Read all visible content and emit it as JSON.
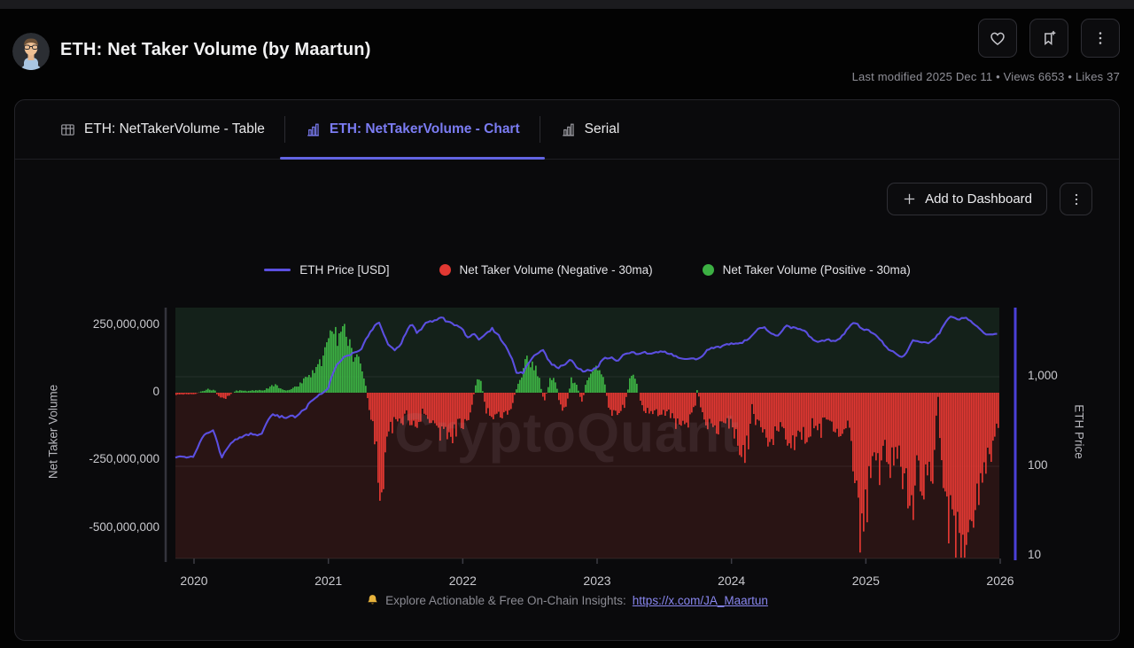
{
  "header": {
    "title": "ETH: Net Taker Volume (by Maartun)",
    "meta": "Last modified 2025 Dec 11  •  Views 6653  •  Likes 37"
  },
  "tabs": [
    {
      "label": "ETH: NetTakerVolume - Table",
      "active": false
    },
    {
      "label": "ETH: NetTakerVolume - Chart",
      "active": true
    },
    {
      "label": "Serial",
      "active": false
    }
  ],
  "toolbar": {
    "add_label": "Add to Dashboard"
  },
  "legend": [
    {
      "label": "ETH Price [USD]",
      "color": "#5b4fe0",
      "swatch": "line"
    },
    {
      "label": "Net Taker Volume (Negative - 30ma)",
      "color": "#e13832",
      "swatch": "dot"
    },
    {
      "label": "Net Taker Volume (Positive - 30ma)",
      "color": "#3cb043",
      "swatch": "dot"
    }
  ],
  "watermark": "CryptoQuant",
  "footer": {
    "text": "Explore Actionable & Free On-Chain Insights:",
    "link": "https://x.com/JA_Maartun"
  },
  "chart_data": {
    "type": "mixed",
    "title": "ETH: Net Taker Volume (by Maartun)",
    "grid": "horizontal-faint",
    "legend_position": "top-center",
    "x_axis": {
      "ticks": [
        "2020",
        "2021",
        "2022",
        "2023",
        "2024",
        "2025",
        "2026"
      ],
      "tick_values": [
        2020,
        2021,
        2022,
        2023,
        2024,
        2025,
        2026
      ],
      "range": [
        2019.86,
        2025.99
      ]
    },
    "left_axis": {
      "title": "Net Taker Volume",
      "ticks": [
        "250,000,000",
        "0",
        "-250,000,000",
        "-500,000,000"
      ],
      "tick_values": [
        250,
        0,
        -250,
        -500
      ],
      "unit": "USD",
      "range_millions": [
        -612,
        314
      ],
      "background_positive": "#14211a",
      "background_negative": "#291414"
    },
    "right_axis": {
      "title": "ETH Price",
      "scale": "log",
      "ticks": [
        "1,000",
        "100",
        "10"
      ],
      "tick_values": [
        1000,
        100,
        10
      ],
      "range": [
        9.4,
        5900
      ],
      "axis_line_color": "#4a40d8"
    },
    "series": [
      {
        "name": "ETH Price [USD]",
        "type": "line",
        "axis": "right",
        "color": "#5b4fe0",
        "points": [
          [
            2019.87,
            128
          ],
          [
            2020.0,
            130
          ],
          [
            2020.08,
            225
          ],
          [
            2020.14,
            255
          ],
          [
            2020.2,
            122
          ],
          [
            2020.25,
            160
          ],
          [
            2020.33,
            205
          ],
          [
            2020.42,
            235
          ],
          [
            2020.5,
            230
          ],
          [
            2020.58,
            385
          ],
          [
            2020.67,
            345
          ],
          [
            2020.75,
            360
          ],
          [
            2020.83,
            450
          ],
          [
            2020.92,
            590
          ],
          [
            2021.0,
            740
          ],
          [
            2021.05,
            1250
          ],
          [
            2021.1,
            1550
          ],
          [
            2021.15,
            1750
          ],
          [
            2021.2,
            1950
          ],
          [
            2021.25,
            2050
          ],
          [
            2021.3,
            2900
          ],
          [
            2021.34,
            3450
          ],
          [
            2021.37,
            4050
          ],
          [
            2021.42,
            2600
          ],
          [
            2021.46,
            2250
          ],
          [
            2021.5,
            2050
          ],
          [
            2021.54,
            2350
          ],
          [
            2021.58,
            3150
          ],
          [
            2021.62,
            3850
          ],
          [
            2021.66,
            3050
          ],
          [
            2021.7,
            3500
          ],
          [
            2021.74,
            4150
          ],
          [
            2021.8,
            4450
          ],
          [
            2021.84,
            4700
          ],
          [
            2021.88,
            4150
          ],
          [
            2021.92,
            4000
          ],
          [
            2021.96,
            3800
          ],
          [
            2022.0,
            3400
          ],
          [
            2022.04,
            2700
          ],
          [
            2022.08,
            3050
          ],
          [
            2022.12,
            2600
          ],
          [
            2022.17,
            2950
          ],
          [
            2022.22,
            3400
          ],
          [
            2022.26,
            3100
          ],
          [
            2022.3,
            2450
          ],
          [
            2022.35,
            1850
          ],
          [
            2022.4,
            1150
          ],
          [
            2022.45,
            1080
          ],
          [
            2022.5,
            1450
          ],
          [
            2022.55,
            1800
          ],
          [
            2022.6,
            1920
          ],
          [
            2022.65,
            1480
          ],
          [
            2022.7,
            1320
          ],
          [
            2022.75,
            1300
          ],
          [
            2022.8,
            1580
          ],
          [
            2022.85,
            1280
          ],
          [
            2022.9,
            1180
          ],
          [
            2022.96,
            1210
          ],
          [
            2023.0,
            1250
          ],
          [
            2023.05,
            1600
          ],
          [
            2023.1,
            1630
          ],
          [
            2023.15,
            1500
          ],
          [
            2023.2,
            1820
          ],
          [
            2023.25,
            1880
          ],
          [
            2023.3,
            1820
          ],
          [
            2023.35,
            1920
          ],
          [
            2023.4,
            1860
          ],
          [
            2023.45,
            1880
          ],
          [
            2023.5,
            1910
          ],
          [
            2023.55,
            1830
          ],
          [
            2023.6,
            1640
          ],
          [
            2023.65,
            1620
          ],
          [
            2023.7,
            1580
          ],
          [
            2023.75,
            1620
          ],
          [
            2023.8,
            1840
          ],
          [
            2023.85,
            2020
          ],
          [
            2023.9,
            2080
          ],
          [
            2023.95,
            2280
          ],
          [
            2024.0,
            2330
          ],
          [
            2024.05,
            2280
          ],
          [
            2024.1,
            2480
          ],
          [
            2024.15,
            2980
          ],
          [
            2024.2,
            3580
          ],
          [
            2024.25,
            3520
          ],
          [
            2024.3,
            3080
          ],
          [
            2024.35,
            3020
          ],
          [
            2024.4,
            3760
          ],
          [
            2024.45,
            3480
          ],
          [
            2024.5,
            3380
          ],
          [
            2024.55,
            3120
          ],
          [
            2024.6,
            2580
          ],
          [
            2024.65,
            2420
          ],
          [
            2024.7,
            2520
          ],
          [
            2024.75,
            2440
          ],
          [
            2024.8,
            2520
          ],
          [
            2024.85,
            3120
          ],
          [
            2024.9,
            3820
          ],
          [
            2024.93,
            4080
          ],
          [
            2024.96,
            3420
          ],
          [
            2025.0,
            3330
          ],
          [
            2025.05,
            3080
          ],
          [
            2025.1,
            2680
          ],
          [
            2025.15,
            2180
          ],
          [
            2025.2,
            1880
          ],
          [
            2025.26,
            1580
          ],
          [
            2025.3,
            1820
          ],
          [
            2025.35,
            2520
          ],
          [
            2025.4,
            2580
          ],
          [
            2025.45,
            2440
          ],
          [
            2025.5,
            2520
          ],
          [
            2025.55,
            3050
          ],
          [
            2025.6,
            4250
          ],
          [
            2025.63,
            4880
          ],
          [
            2025.67,
            4550
          ],
          [
            2025.7,
            4280
          ],
          [
            2025.74,
            4480
          ],
          [
            2025.78,
            4050
          ],
          [
            2025.82,
            3920
          ],
          [
            2025.86,
            3350
          ],
          [
            2025.9,
            2980
          ],
          [
            2025.95,
            3080
          ],
          [
            2025.99,
            3060
          ]
        ]
      },
      {
        "name": "Net Taker Volume (30ma)",
        "type": "bars",
        "axis": "left",
        "unit": "million USD",
        "positive_color": "#3cb043",
        "negative_color": "#e13832",
        "points": [
          [
            2019.87,
            -8
          ],
          [
            2019.95,
            -5
          ],
          [
            2020.0,
            -6
          ],
          [
            2020.05,
            5
          ],
          [
            2020.1,
            12
          ],
          [
            2020.15,
            8
          ],
          [
            2020.18,
            -18
          ],
          [
            2020.22,
            -25
          ],
          [
            2020.26,
            -10
          ],
          [
            2020.3,
            6
          ],
          [
            2020.35,
            10
          ],
          [
            2020.4,
            6
          ],
          [
            2020.45,
            10
          ],
          [
            2020.5,
            8
          ],
          [
            2020.55,
            18
          ],
          [
            2020.6,
            30
          ],
          [
            2020.65,
            12
          ],
          [
            2020.7,
            8
          ],
          [
            2020.75,
            22
          ],
          [
            2020.8,
            40
          ],
          [
            2020.85,
            55
          ],
          [
            2020.9,
            90
          ],
          [
            2020.95,
            130
          ],
          [
            2021.0,
            195
          ],
          [
            2021.04,
            262
          ],
          [
            2021.07,
            210
          ],
          [
            2021.1,
            238
          ],
          [
            2021.14,
            180
          ],
          [
            2021.18,
            130
          ],
          [
            2021.22,
            110
          ],
          [
            2021.26,
            60
          ],
          [
            2021.3,
            -60
          ],
          [
            2021.34,
            -180
          ],
          [
            2021.38,
            -350
          ],
          [
            2021.42,
            -240
          ],
          [
            2021.46,
            -130
          ],
          [
            2021.5,
            -90
          ],
          [
            2021.54,
            -110
          ],
          [
            2021.58,
            -75
          ],
          [
            2021.62,
            -125
          ],
          [
            2021.66,
            -105
          ],
          [
            2021.7,
            -70
          ],
          [
            2021.74,
            -95
          ],
          [
            2021.78,
            -130
          ],
          [
            2021.82,
            -155
          ],
          [
            2021.86,
            -120
          ],
          [
            2021.9,
            -160
          ],
          [
            2021.94,
            -135
          ],
          [
            2022.0,
            -120
          ],
          [
            2022.05,
            -90
          ],
          [
            2022.09,
            35
          ],
          [
            2022.13,
            55
          ],
          [
            2022.16,
            -60
          ],
          [
            2022.2,
            -90
          ],
          [
            2022.25,
            -70
          ],
          [
            2022.3,
            -95
          ],
          [
            2022.35,
            -60
          ],
          [
            2022.4,
            25
          ],
          [
            2022.44,
            70
          ],
          [
            2022.48,
            135
          ],
          [
            2022.52,
            110
          ],
          [
            2022.56,
            60
          ],
          [
            2022.6,
            -40
          ],
          [
            2022.64,
            45
          ],
          [
            2022.68,
            60
          ],
          [
            2022.72,
            -55
          ],
          [
            2022.76,
            -75
          ],
          [
            2022.8,
            50
          ],
          [
            2022.84,
            40
          ],
          [
            2022.88,
            -45
          ],
          [
            2022.92,
            55
          ],
          [
            2022.96,
            75
          ],
          [
            2023.0,
            82
          ],
          [
            2023.04,
            60
          ],
          [
            2023.08,
            -50
          ],
          [
            2023.12,
            -80
          ],
          [
            2023.16,
            -60
          ],
          [
            2023.2,
            -45
          ],
          [
            2023.24,
            50
          ],
          [
            2023.28,
            58
          ],
          [
            2023.32,
            -40
          ],
          [
            2023.36,
            -70
          ],
          [
            2023.4,
            -90
          ],
          [
            2023.44,
            -65
          ],
          [
            2023.48,
            -85
          ],
          [
            2023.52,
            -70
          ],
          [
            2023.56,
            -95
          ],
          [
            2023.6,
            -120
          ],
          [
            2023.64,
            -90
          ],
          [
            2023.68,
            -110
          ],
          [
            2023.72,
            -60
          ],
          [
            2023.74,
            15
          ],
          [
            2023.78,
            -80
          ],
          [
            2023.82,
            -120
          ],
          [
            2023.86,
            -100
          ],
          [
            2023.9,
            -140
          ],
          [
            2023.94,
            -110
          ],
          [
            2024.0,
            -130
          ],
          [
            2024.05,
            -180
          ],
          [
            2024.1,
            -215
          ],
          [
            2024.145,
            -110
          ],
          [
            2024.15,
            18
          ],
          [
            2024.155,
            -105
          ],
          [
            2024.2,
            -90
          ],
          [
            2024.25,
            -150
          ],
          [
            2024.3,
            -180
          ],
          [
            2024.35,
            -120
          ],
          [
            2024.4,
            -160
          ],
          [
            2024.45,
            -190
          ],
          [
            2024.5,
            -140
          ],
          [
            2024.55,
            -170
          ],
          [
            2024.6,
            -120
          ],
          [
            2024.65,
            -145
          ],
          [
            2024.7,
            -95
          ],
          [
            2024.75,
            -120
          ],
          [
            2024.8,
            -150
          ],
          [
            2024.85,
            -110
          ],
          [
            2024.88,
            -180
          ],
          [
            2024.91,
            -320
          ],
          [
            2024.94,
            -470
          ],
          [
            2024.97,
            -510
          ],
          [
            2025.0,
            -430
          ],
          [
            2025.03,
            -300
          ],
          [
            2025.06,
            -230
          ],
          [
            2025.1,
            -290
          ],
          [
            2025.14,
            -200
          ],
          [
            2025.18,
            -260
          ],
          [
            2025.22,
            -210
          ],
          [
            2025.26,
            -300
          ],
          [
            2025.295,
            -350
          ],
          [
            2025.3,
            14
          ],
          [
            2025.305,
            -360
          ],
          [
            2025.34,
            -420
          ],
          [
            2025.38,
            -280
          ],
          [
            2025.42,
            -330
          ],
          [
            2025.46,
            -240
          ],
          [
            2025.5,
            -290
          ],
          [
            2025.53,
            10
          ],
          [
            2025.56,
            -350
          ],
          [
            2025.6,
            -430
          ],
          [
            2025.62,
            -500
          ],
          [
            2025.66,
            -545
          ],
          [
            2025.7,
            -573
          ],
          [
            2025.74,
            -460
          ],
          [
            2025.78,
            -520
          ],
          [
            2025.82,
            -400
          ],
          [
            2025.86,
            -330
          ],
          [
            2025.9,
            -260
          ],
          [
            2025.94,
            -180
          ],
          [
            2025.99,
            -130
          ]
        ]
      }
    ]
  }
}
